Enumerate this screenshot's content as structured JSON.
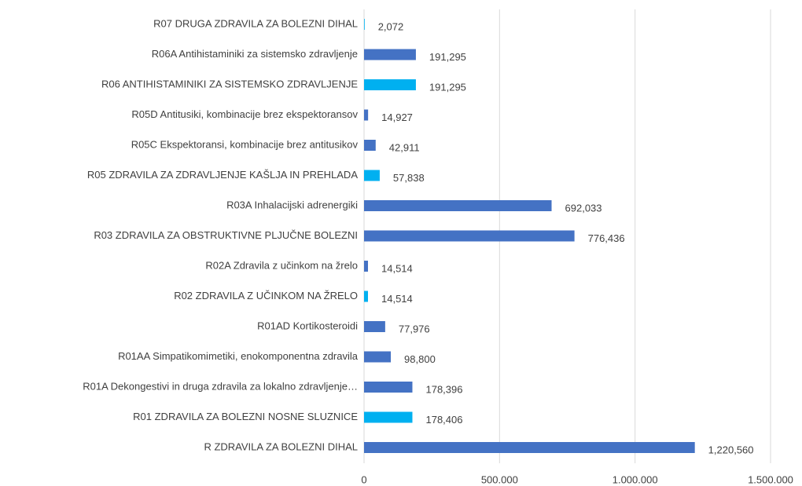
{
  "chart_data": {
    "type": "barh",
    "categories": [
      "R07 DRUGA ZDRAVILA ZA BOLEZNI DIHAL",
      "R06A Antihistaminiki za sistemsko zdravljenje",
      "R06 ANTIHISTAMINIKI ZA SISTEMSKO ZDRAVLJENJE",
      "R05D Antitusiki, kombinacije brez ekspektoransov",
      "R05C Ekspektoransi, kombinacije brez antitusikov",
      "R05 ZDRAVILA ZA ZDRAVLJENJE KAŠLJA IN PREHLADA",
      "R03A Inhalacijski adrenergiki",
      "R03 ZDRAVILA ZA OBSTRUKTIVNE PLJUČNE BOLEZNI",
      "R02A Zdravila z učinkom na žrelo",
      "R02 ZDRAVILA Z UČINKOM NA ŽRELO",
      "R01AD Kortikosteroidi",
      "R01AA Simpatikomimetiki, enokomponentna zdravila",
      "R01A Dekongestivi in druga zdravila za lokalno zdravljenje…",
      "R01 ZDRAVILA ZA BOLEZNI NOSNE SLUZNICE",
      "R ZDRAVILA ZA BOLEZNI DIHAL"
    ],
    "values": [
      2072,
      191295,
      191295,
      14927,
      42911,
      57838,
      692033,
      776436,
      14514,
      14514,
      77976,
      98800,
      178396,
      178406,
      1220560
    ],
    "value_labels": [
      "2,072",
      "191,295",
      "191,295",
      "14,927",
      "42,911",
      "57,838",
      "692,033",
      "776,436",
      "14,514",
      "14,514",
      "77,976",
      "98,800",
      "178,396",
      "178,406",
      "1,220,560"
    ],
    "colors": [
      "#00b0f0",
      "#4472c4",
      "#00b0f0",
      "#4472c4",
      "#4472c4",
      "#00b0f0",
      "#4472c4",
      "#4472c4",
      "#4472c4",
      "#00b0f0",
      "#4472c4",
      "#4472c4",
      "#4472c4",
      "#00b0f0",
      "#4472c4"
    ],
    "xlim": [
      0,
      1500000
    ],
    "xticks": [
      0,
      {
        "value": 500000,
        "label": "500.000"
      },
      {
        "value": 1000000,
        "label": "1.000.000"
      },
      {
        "value": 1500000,
        "label": "1.500.000"
      }
    ],
    "grid": true
  }
}
